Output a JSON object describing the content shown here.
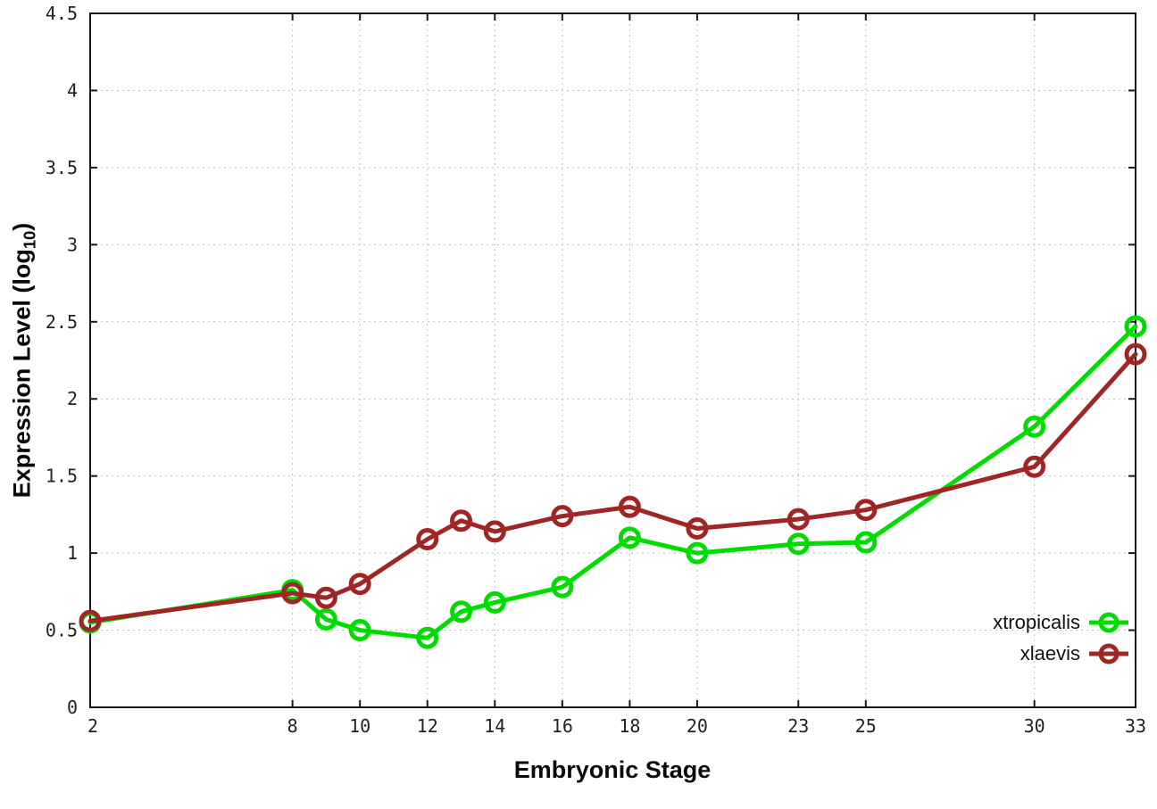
{
  "chart_data": {
    "type": "line",
    "title": "",
    "xlabel": "Embryonic Stage",
    "ylabel": "Expression Level (log10)",
    "ylabel_parts": {
      "prefix": "Expression Level (log",
      "sub": "10",
      "suffix": ")"
    },
    "x": [
      2,
      8,
      9,
      10,
      12,
      13,
      14,
      16,
      18,
      20,
      23,
      25,
      30,
      33
    ],
    "x_ticks": [
      2,
      8,
      10,
      12,
      14,
      16,
      18,
      20,
      23,
      25,
      30,
      33
    ],
    "y_ticks": [
      0,
      0.5,
      1,
      1.5,
      2,
      2.5,
      3,
      3.5,
      4,
      4.5
    ],
    "xlim": [
      2,
      33
    ],
    "ylim": [
      0,
      4.5
    ],
    "grid": true,
    "legend_position": "bottom-right-inside",
    "marker": "open-circle",
    "colors": {
      "background": "#ffffff",
      "border": "#1a1a1a",
      "grid": "#bbbbbb"
    },
    "series": [
      {
        "name": "xtropicalis",
        "color": "#00dc00",
        "values": [
          0.55,
          0.76,
          0.57,
          0.5,
          0.45,
          0.62,
          0.68,
          0.78,
          1.1,
          1.0,
          1.06,
          1.07,
          1.82,
          2.47
        ]
      },
      {
        "name": "xlaevis",
        "color": "#a02626",
        "values": [
          0.56,
          0.74,
          0.71,
          0.8,
          1.09,
          1.21,
          1.14,
          1.24,
          1.3,
          1.16,
          1.22,
          1.28,
          1.56,
          2.29
        ]
      }
    ]
  }
}
